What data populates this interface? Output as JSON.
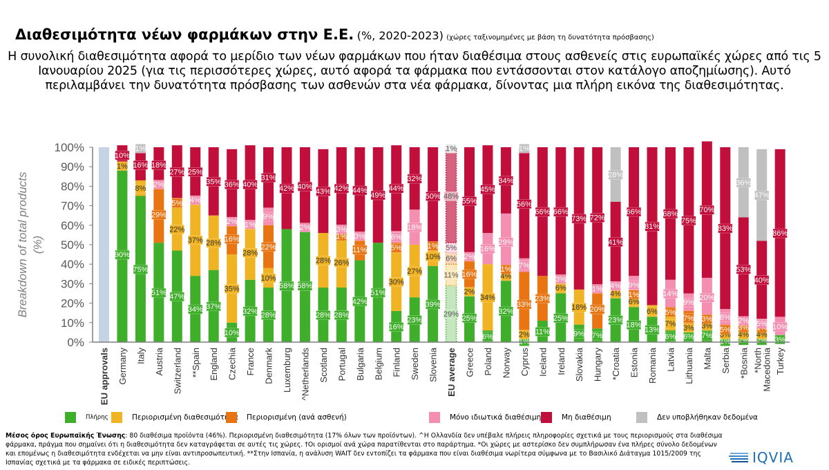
{
  "header": {
    "title": "Διαθεσιμότητα νέων φαρμάκων στην Ε.Ε.",
    "period": "(%, 2020-2023)",
    "note": "(χώρες ταξινομημένες με βάση τη δυνατότητα πρόσβασης)",
    "subtitle": "Η συνολική διαθεσιμότητα αφορά το μερίδιο των νέων φαρμάκων που ήταν διαθέσιμα στους ασθενείς στις ευρωπαϊκές χώρες από τις 5 Ιανουαρίου 2025 (για τις περισσότερες χώρες, αυτό αφορά τα φάρμακα που εντάσσονται στον κατάλογο αποζημίωσης). Αυτό περιλαμβάνει την δυνατότητα πρόσβασης των ασθενών στα νέα φάρμακα, δίνοντας μια πλήρη εικόνα της διαθεσιμότητας."
  },
  "footnote": {
    "bold_lead": "Μέσος όρος Ευρωπαϊκής Ένωσης",
    "text": ": 80 διαθέσιμα προϊόντα (46%). Περιορισμένη διαθεσιμότητα (17% όλων των προϊόντων). ^Η Ολλανδία δεν υπέβαλε πλήρεις πληροφορίες σχετικά με τους περιορισμούς στα διαθέσιμα φάρμακα, πράγμα που σημαίνει ότι η διαθεσιμότητα δεν καταγράφεται σε αυτές τις χώρες. †Οι ορισμοί ανά χώρα παρατίθενται στο παράρτημα. *Οι χώρες με αστερίσκο δεν συμπλήρωσαν ένα πλήρες σύνολο δεδομένων και επομένως η διαθεσιμότητα ενδέχεται να μην είναι αντιπροσωπευτική. **Στην Ισπανία, η ανάλυση WAIT δεν εντοπίζει τα φάρμακα που είναι διαθέσιμα νωρίτερα σύμφωνα με το Βασιλικό Διάταγμα 1015/2009 της Ισπανίας σχετικά με τα φάρμακα σε ειδικές περιπτώσεις."
  },
  "logo": {
    "text": "IQVIA",
    "icon": "iqvia-logo-icon"
  },
  "chart_data": {
    "type": "bar",
    "stacked": true,
    "title": "Διαθεσιμότητα νέων φαρμάκων στην Ε.Ε.",
    "xlabel": "",
    "ylabel": "Breakdown of total products (%)",
    "ylim": [
      0,
      100
    ],
    "yticks": [
      "0%",
      "10%",
      "20%",
      "30%",
      "40%",
      "50%",
      "60%",
      "70%",
      "80%",
      "90%",
      "100%"
    ],
    "grid": false,
    "legend_position": "bottom",
    "categories": [
      "EU approvals",
      "Germany",
      "Italy",
      "Austria",
      "Switzerland",
      "**Spain",
      "England",
      "Czechia",
      "France",
      "Denmark",
      "Luxemburg",
      "^Netherlands",
      "Scotland",
      "Portugal",
      "Bulgaria",
      "Belgium",
      "Finland",
      "Sweden",
      "Slovenia",
      "EU average",
      "Greece",
      "Poland",
      "Norway",
      "Cyprus",
      "Iceland",
      "Ireland",
      "Slovakia",
      "Hungary",
      "*Croatia",
      "Estonia",
      "Romania",
      "Latvia",
      "Lithuania",
      "Malta",
      "Serbia",
      "*Bosnia",
      "*North Macedonia",
      "Turkey"
    ],
    "bold_categories": [
      "EU approvals",
      "EU average"
    ],
    "reference_bar": {
      "category": "EU approvals",
      "value": 100,
      "color": "#c5d3e6"
    },
    "highlight_bar": {
      "category": "EU average",
      "style": "dotted-light"
    },
    "series": [
      {
        "name": "Πλήρης",
        "color": "#3fae2a",
        "text_color": "#ffffff",
        "values": [
          null,
          90,
          75,
          51,
          47,
          34,
          37,
          10,
          32,
          28,
          58,
          58,
          28,
          28,
          42,
          51,
          16,
          23,
          39,
          29,
          25,
          6,
          32,
          1,
          11,
          25,
          9,
          7,
          23,
          18,
          13,
          6,
          6,
          7,
          1,
          2,
          2,
          3
        ]
      },
      {
        "name": "Περιορισμένη διαθεσιμότητα",
        "color": "#f0b323",
        "text_color": "#333333",
        "values": [
          null,
          1,
          8,
          0,
          22,
          37,
          28,
          35,
          28,
          10,
          0,
          0,
          28,
          26,
          0,
          0,
          30,
          27,
          10,
          11,
          2,
          34,
          4,
          2,
          0,
          6,
          18,
          0,
          4,
          6,
          6,
          7,
          3,
          3,
          3,
          4,
          4,
          0
        ]
      },
      {
        "name": "Περιορισμένη (ανά ασθενή)",
        "color": "#e87511",
        "text_color": "#ffffff",
        "values": [
          null,
          0,
          0,
          29,
          5,
          0,
          0,
          16,
          0,
          22,
          0,
          0,
          0,
          1,
          11,
          0,
          5,
          0,
          1,
          6,
          16,
          0,
          1,
          33,
          23,
          0,
          0,
          20,
          0,
          1,
          0,
          5,
          7,
          3,
          5,
          3,
          1,
          0
        ]
      },
      {
        "name": "Μόνο ιδιωτικά διαθέσιμη",
        "color": "#f48fb1",
        "text_color": "#ffffff",
        "values": [
          null,
          0,
          0,
          2,
          0,
          4,
          0,
          2,
          1,
          9,
          0,
          2,
          0,
          3,
          3,
          0,
          6,
          18,
          0,
          5,
          2,
          16,
          29,
          7,
          0,
          3,
          0,
          1,
          4,
          9,
          0,
          14,
          9,
          20,
          8,
          2,
          5,
          10
        ]
      },
      {
        "name": "Μη διαθέσιμη",
        "color": "#c20e3a",
        "text_color": "#ffffff",
        "values": [
          null,
          10,
          16,
          18,
          27,
          25,
          35,
          36,
          40,
          31,
          42,
          40,
          43,
          42,
          44,
          49,
          44,
          32,
          50,
          48,
          55,
          45,
          34,
          56,
          66,
          66,
          73,
          72,
          41,
          66,
          81,
          68,
          75,
          70,
          83,
          53,
          40,
          86
        ]
      },
      {
        "name": "Δεν υποβλήθηκαν δεδομένα",
        "color": "#c0c0c0",
        "text_color": "#ffffff",
        "values": [
          null,
          0,
          1,
          0,
          0,
          0,
          0,
          0,
          0,
          0,
          0,
          0,
          0,
          0,
          0,
          0,
          0,
          0,
          0,
          1,
          0,
          0,
          0,
          1,
          0,
          0,
          0,
          0,
          28,
          0,
          0,
          0,
          0,
          0,
          0,
          36,
          47,
          0
        ]
      }
    ]
  }
}
